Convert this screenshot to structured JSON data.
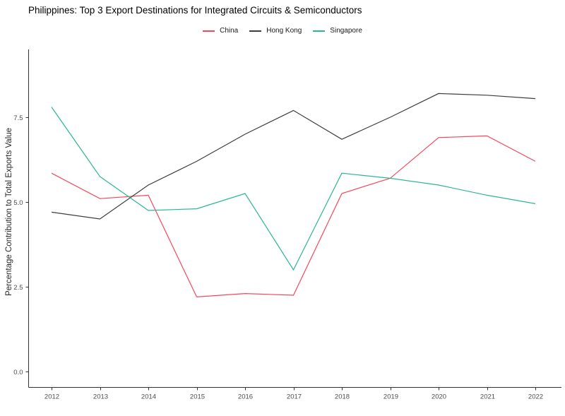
{
  "chart_data": {
    "type": "line",
    "title": "Philippines: Top 3 Export Destinations for Integrated Circuits & Semiconductors",
    "xlabel": "",
    "ylabel": "Percentage Contribution to Total Exports Value",
    "x": [
      2012,
      2013,
      2014,
      2015,
      2016,
      2017,
      2018,
      2019,
      2020,
      2021,
      2022
    ],
    "series": [
      {
        "name": "China",
        "color": "#f7465a",
        "values": [
          5.85,
          5.1,
          5.2,
          2.2,
          2.3,
          2.25,
          5.25,
          5.7,
          6.9,
          6.95,
          6.2
        ]
      },
      {
        "name": "Hong Kong",
        "color": "#3d3d3d",
        "values": [
          4.7,
          4.5,
          5.5,
          6.2,
          7.0,
          7.7,
          6.85,
          7.5,
          8.2,
          8.15,
          8.05
        ]
      },
      {
        "name": "Singapore",
        "color": "#29b795",
        "values": [
          7.8,
          5.75,
          4.75,
          4.8,
          5.25,
          3.0,
          5.85,
          5.7,
          5.5,
          5.2,
          4.95
        ]
      }
    ],
    "y_ticks": [
      0.0,
      2.5,
      5.0,
      7.5
    ],
    "ylim": [
      -0.45,
      9.5
    ],
    "grid": false,
    "legend_position": "top-center",
    "colors": {
      "axis": "#333333",
      "tick_label": "#4d4d4d",
      "axis_title": "#262626",
      "title_text": "#000000",
      "background": "#ffffff"
    }
  }
}
